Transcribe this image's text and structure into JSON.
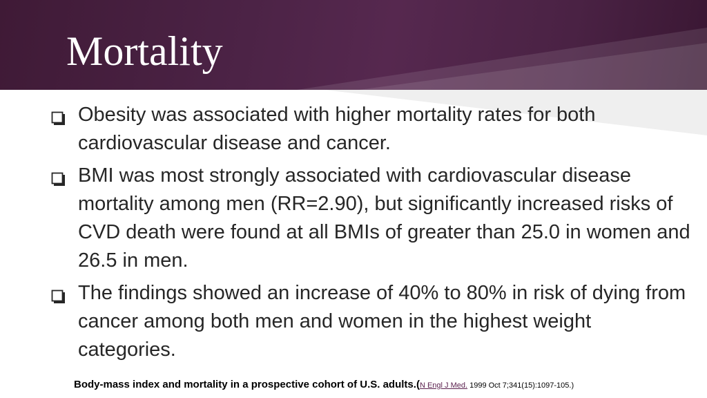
{
  "slide": {
    "title": "Mortality",
    "bullets": [
      "Obesity was associated with higher mortality rates for both cardiovascular disease and cancer.",
      "BMI was most strongly associated with cardiovascular disease mortality among men (RR=2.90), but significantly increased risks of CVD death were found at all BMIs of greater than 25.0 in women and 26.5 in men.",
      "The findings showed an increase of 40% to 80% in risk of dying from cancer among both men and women in the highest weight categories."
    ],
    "bullet_icon": "checkbox-icon",
    "citation": {
      "title": "Body-mass index and mortality in a prospective cohort of U.S. adults.",
      "open_paren": "(",
      "journal_link": "N Engl J Med.",
      "reference": " 1999 Oct 7;341(15):1097-105.)"
    }
  },
  "colors": {
    "header_dark": "#3f1a36",
    "header_mid": "#56284f",
    "text": "#262626",
    "link": "#5a1f4d"
  }
}
